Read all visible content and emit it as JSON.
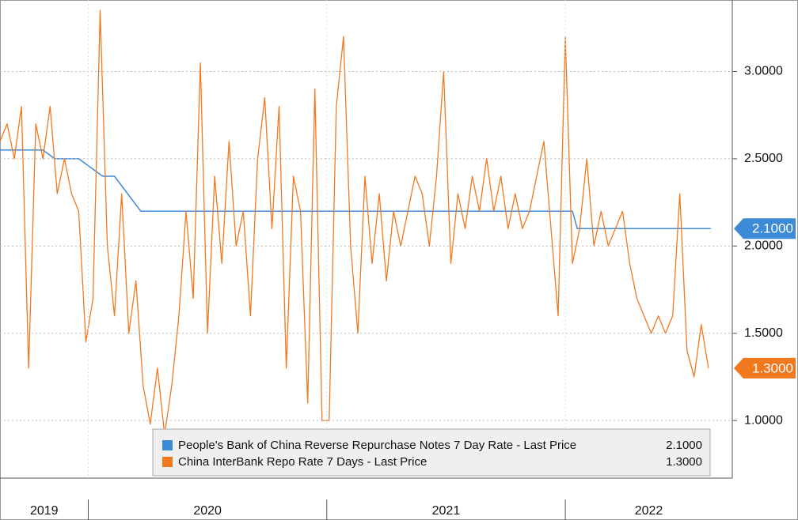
{
  "chart_data": {
    "type": "line",
    "xlim": [
      2019.63,
      2022.7
    ],
    "xticks": [
      2020,
      2021,
      2022
    ],
    "year_labels": [
      2019,
      2020,
      2021,
      2022
    ],
    "ylim": [
      0.67,
      3.41
    ],
    "yticks": [
      {
        "value": 1.0,
        "label": "1.0000"
      },
      {
        "value": 1.5,
        "label": "1.5000"
      },
      {
        "value": 2.0,
        "label": "2.0000"
      },
      {
        "value": 2.5,
        "label": "2.5000"
      },
      {
        "value": 3.0,
        "label": "3.0000"
      }
    ],
    "grid": true,
    "series": [
      {
        "name": "People's Bank of China Reverse Repurchase Notes 7 Day Rate - Last Price",
        "color": "#3d8ad6",
        "last_label": "2.1000",
        "x": [
          2019.63,
          2019.81,
          2019.86,
          2019.96,
          2020.06,
          2020.11,
          2020.22,
          2022.03,
          2022.05,
          2022.61
        ],
        "values": [
          2.55,
          2.55,
          2.5,
          2.5,
          2.4,
          2.4,
          2.2,
          2.2,
          2.1,
          2.1
        ]
      },
      {
        "name": "China InterBank Repo Rate 7 Days - Last Price",
        "color": "#f2781e",
        "last_label": "1.3000",
        "x": [
          2019.63,
          2019.66,
          2019.69,
          2019.72,
          2019.75,
          2019.78,
          2019.81,
          2019.84,
          2019.87,
          2019.9,
          2019.93,
          2019.96,
          2019.99,
          2020.02,
          2020.05,
          2020.08,
          2020.11,
          2020.14,
          2020.17,
          2020.2,
          2020.23,
          2020.26,
          2020.29,
          2020.32,
          2020.35,
          2020.38,
          2020.41,
          2020.44,
          2020.47,
          2020.5,
          2020.53,
          2020.56,
          2020.59,
          2020.62,
          2020.65,
          2020.68,
          2020.71,
          2020.74,
          2020.77,
          2020.8,
          2020.83,
          2020.86,
          2020.89,
          2020.92,
          2020.95,
          2020.98,
          2021.01,
          2021.04,
          2021.07,
          2021.1,
          2021.13,
          2021.16,
          2021.19,
          2021.22,
          2021.25,
          2021.28,
          2021.31,
          2021.34,
          2021.37,
          2021.4,
          2021.43,
          2021.46,
          2021.49,
          2021.52,
          2021.55,
          2021.58,
          2021.61,
          2021.64,
          2021.67,
          2021.7,
          2021.73,
          2021.76,
          2021.79,
          2021.82,
          2021.85,
          2021.88,
          2021.91,
          2021.94,
          2021.97,
          2022.0,
          2022.03,
          2022.06,
          2022.09,
          2022.12,
          2022.15,
          2022.18,
          2022.21,
          2022.24,
          2022.27,
          2022.3,
          2022.33,
          2022.36,
          2022.39,
          2022.42,
          2022.45,
          2022.48,
          2022.51,
          2022.54,
          2022.57,
          2022.6
        ],
        "values": [
          2.6,
          2.7,
          2.5,
          2.8,
          1.3,
          2.7,
          2.5,
          2.8,
          2.3,
          2.5,
          2.3,
          2.2,
          1.45,
          1.7,
          3.35,
          2.0,
          1.6,
          2.3,
          1.5,
          1.8,
          1.2,
          0.98,
          1.3,
          0.92,
          1.2,
          1.6,
          2.2,
          1.7,
          3.05,
          1.5,
          2.4,
          1.9,
          2.6,
          2.0,
          2.2,
          1.6,
          2.5,
          2.85,
          2.1,
          2.8,
          1.3,
          2.4,
          2.2,
          1.1,
          2.9,
          1.0,
          1.0,
          2.8,
          3.2,
          2.0,
          1.5,
          2.4,
          1.9,
          2.3,
          1.8,
          2.2,
          2.0,
          2.2,
          2.4,
          2.3,
          2.0,
          2.4,
          3.0,
          1.9,
          2.3,
          2.1,
          2.4,
          2.2,
          2.5,
          2.2,
          2.4,
          2.1,
          2.3,
          2.1,
          2.2,
          2.4,
          2.6,
          2.1,
          1.6,
          3.2,
          1.9,
          2.1,
          2.5,
          2.0,
          2.2,
          2.0,
          2.1,
          2.2,
          1.9,
          1.7,
          1.6,
          1.5,
          1.6,
          1.5,
          1.6,
          2.3,
          1.4,
          1.25,
          1.55,
          1.3
        ]
      }
    ]
  }
}
